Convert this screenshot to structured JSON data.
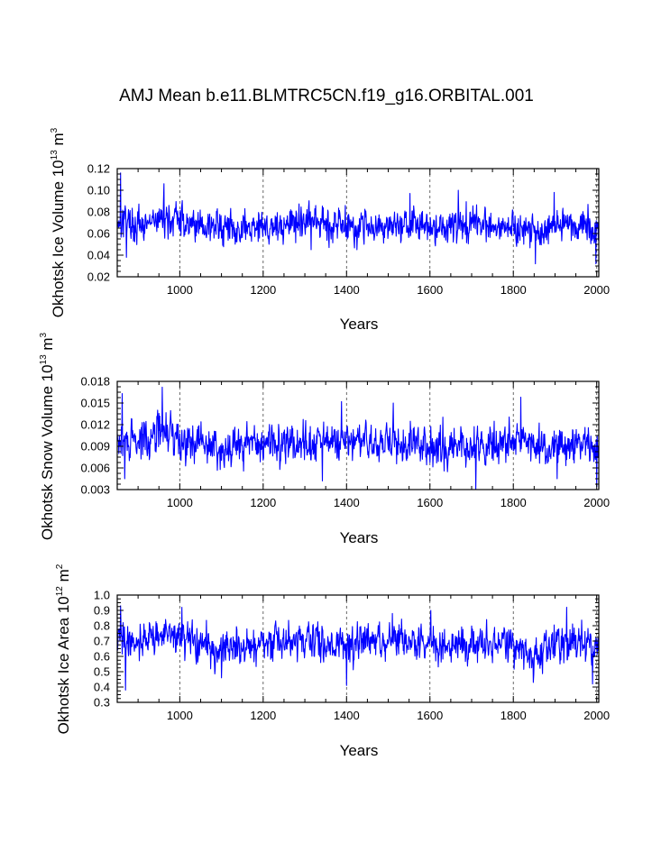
{
  "chart_data": {
    "title": "AMJ Mean b.e11.BLMTRC5CN.f19_g16.ORBITAL.001",
    "line_color": "#0000ff",
    "panels": [
      {
        "type": "line",
        "ylabel": "Okhotsk Ice Volume 10",
        "ylabel_exp": "13",
        "ylabel_unit": " m",
        "ylabel_unit_exp": "3",
        "xlabel": "Years",
        "xlim": [
          850,
          2005
        ],
        "ylim": [
          0.02,
          0.12
        ],
        "xticks": [
          1000,
          1200,
          1400,
          1600,
          1800,
          2000
        ],
        "yticks": [
          0.02,
          0.04,
          0.06,
          0.08,
          0.1,
          0.12
        ],
        "ytick_labels": [
          "0.02",
          "0.04",
          "0.06",
          "0.08",
          "0.10",
          "0.12"
        ],
        "gridlines_x": [
          1000,
          1200,
          1400,
          1600,
          1800,
          2000
        ],
        "baseline": 0.068,
        "amplitude": 0.011,
        "envelope": [
          [
            850,
            0.072
          ],
          [
            870,
            0.075
          ],
          [
            900,
            0.064
          ],
          [
            960,
            0.074
          ],
          [
            1000,
            0.072
          ],
          [
            1100,
            0.064
          ],
          [
            1200,
            0.066
          ],
          [
            1300,
            0.07
          ],
          [
            1400,
            0.068
          ],
          [
            1500,
            0.068
          ],
          [
            1600,
            0.066
          ],
          [
            1700,
            0.068
          ],
          [
            1800,
            0.068
          ],
          [
            1850,
            0.058
          ],
          [
            1900,
            0.07
          ],
          [
            2005,
            0.066
          ]
        ],
        "seed": 17,
        "peaks": [
          [
            858,
            0.116
          ],
          [
            962,
            0.106
          ],
          [
            1668,
            0.1
          ],
          [
            1898,
            0.098
          ],
          [
            1552,
            0.097
          ]
        ],
        "troughs": [
          [
            872,
            0.038
          ],
          [
            1853,
            0.032
          ],
          [
            1998,
            0.032
          ],
          [
            1315,
            0.045
          ],
          [
            1425,
            0.045
          ]
        ]
      },
      {
        "type": "line",
        "ylabel": "Okhotsk Snow Volume 10",
        "ylabel_exp": "13",
        "ylabel_unit": " m",
        "ylabel_unit_exp": "3",
        "xlabel": "Years",
        "xlim": [
          850,
          2005
        ],
        "ylim": [
          0.003,
          0.018
        ],
        "xticks": [
          1000,
          1200,
          1400,
          1600,
          1800,
          2000
        ],
        "yticks": [
          0.003,
          0.006,
          0.009,
          0.012,
          0.015,
          0.018
        ],
        "ytick_labels": [
          "0.003",
          "0.006",
          "0.009",
          "0.012",
          "0.015",
          "0.018"
        ],
        "gridlines_x": [
          1000,
          1200,
          1400,
          1600,
          1800,
          2000
        ],
        "baseline": 0.0093,
        "amplitude": 0.0019,
        "envelope": [
          [
            850,
            0.0095
          ],
          [
            900,
            0.0095
          ],
          [
            950,
            0.0112
          ],
          [
            1000,
            0.0102
          ],
          [
            1100,
            0.0088
          ],
          [
            1200,
            0.0094
          ],
          [
            1300,
            0.0094
          ],
          [
            1400,
            0.0096
          ],
          [
            1500,
            0.0092
          ],
          [
            1600,
            0.0094
          ],
          [
            1700,
            0.0088
          ],
          [
            1800,
            0.0096
          ],
          [
            1900,
            0.009
          ],
          [
            2005,
            0.0088
          ]
        ],
        "seed": 29,
        "peaks": [
          [
            862,
            0.0163
          ],
          [
            958,
            0.0172
          ],
          [
            1388,
            0.0152
          ],
          [
            1818,
            0.0158
          ],
          [
            1512,
            0.015
          ]
        ],
        "troughs": [
          [
            868,
            0.0045
          ],
          [
            1710,
            0.003
          ],
          [
            2000,
            0.0034
          ],
          [
            1342,
            0.0042
          ],
          [
            1905,
            0.0045
          ]
        ]
      },
      {
        "type": "line",
        "ylabel": "Okhotsk Ice Area 10",
        "ylabel_exp": "12",
        "ylabel_unit": " m",
        "ylabel_unit_exp": "2",
        "xlabel": "Years",
        "xlim": [
          850,
          2005
        ],
        "ylim": [
          0.3,
          1.0
        ],
        "xticks": [
          1000,
          1200,
          1400,
          1600,
          1800,
          2000
        ],
        "yticks": [
          0.3,
          0.4,
          0.5,
          0.6,
          0.7,
          0.8,
          0.9,
          1.0
        ],
        "ytick_labels": [
          "0.3",
          "0.4",
          "0.5",
          "0.6",
          "0.7",
          "0.8",
          "0.9",
          "1.0"
        ],
        "gridlines_x": [
          1000,
          1200,
          1400,
          1600,
          1800,
          2000
        ],
        "baseline": 0.69,
        "amplitude": 0.08,
        "envelope": [
          [
            850,
            0.71
          ],
          [
            900,
            0.7
          ],
          [
            960,
            0.75
          ],
          [
            1000,
            0.72
          ],
          [
            1100,
            0.64
          ],
          [
            1200,
            0.68
          ],
          [
            1300,
            0.7
          ],
          [
            1400,
            0.68
          ],
          [
            1500,
            0.7
          ],
          [
            1600,
            0.68
          ],
          [
            1700,
            0.68
          ],
          [
            1800,
            0.68
          ],
          [
            1845,
            0.58
          ],
          [
            1900,
            0.7
          ],
          [
            2005,
            0.68
          ]
        ],
        "seed": 41,
        "peaks": [
          [
            858,
            0.93
          ],
          [
            1005,
            0.92
          ],
          [
            1928,
            0.92
          ],
          [
            1510,
            0.88
          ],
          [
            1602,
            0.9
          ]
        ],
        "troughs": [
          [
            870,
            0.38
          ],
          [
            1400,
            0.41
          ],
          [
            1848,
            0.43
          ],
          [
            1990,
            0.42
          ],
          [
            1100,
            0.46
          ]
        ]
      }
    ]
  }
}
